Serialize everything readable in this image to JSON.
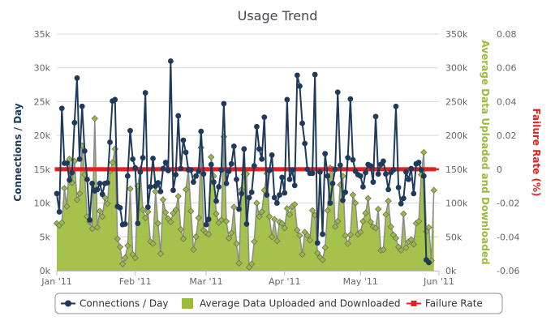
{
  "chart_data": {
    "type": "line",
    "title": "Usage Trend",
    "x_axis": {
      "type": "date",
      "range": [
        "2011-01-01",
        "2011-06-01"
      ],
      "tick_labels": [
        "Jan '11",
        "Feb '11",
        "Mar '11",
        "Apr '11",
        "May '11",
        "Jun '11"
      ],
      "tick_dates": [
        "2011-01-01",
        "2011-02-01",
        "2011-03-01",
        "2011-04-01",
        "2011-05-01",
        "2011-06-01"
      ]
    },
    "y_axes": [
      {
        "id": "connections",
        "label": "Connections / Day",
        "side": "left",
        "min": 0,
        "max": 35000,
        "tick_labels": [
          "0k",
          "5k",
          "10k",
          "15k",
          "20k",
          "25k",
          "30k",
          "35k"
        ],
        "tick_values": [
          0,
          5000,
          10000,
          15000,
          20000,
          25000,
          30000,
          35000
        ]
      },
      {
        "id": "data",
        "label": "Average Data Uploaded and Downloaded",
        "side": "right",
        "min": 0,
        "max": 350000,
        "tick_labels": [
          "0k",
          "50k",
          "100k",
          "150k",
          "200k",
          "250k",
          "300k",
          "350k"
        ],
        "tick_values": [
          0,
          50000,
          100000,
          150000,
          200000,
          250000,
          300000,
          350000
        ]
      },
      {
        "id": "failure",
        "label": "Failure Rate (%)",
        "side": "right",
        "min": -0.06,
        "max": 0.08,
        "tick_labels": [
          "-0.06",
          "-0.04",
          "-0.02",
          "0",
          "0.02",
          "0.04",
          "0.06",
          "0.08"
        ],
        "tick_values": [
          -0.06,
          -0.04,
          -0.02,
          0,
          0.02,
          0.04,
          0.06,
          0.08
        ]
      }
    ],
    "grid": true,
    "legend_position": "bottom",
    "series": [
      {
        "name": "Connections / Day",
        "kind": "line",
        "axis": "connections",
        "color": "#1f3a5a",
        "start_date": "2011-01-01",
        "values": [
          11400,
          8700,
          24000,
          15900,
          15900,
          13400,
          14500,
          21900,
          28500,
          16500,
          24300,
          17700,
          13500,
          7500,
          12900,
          11800,
          12000,
          12900,
          11300,
          12900,
          13000,
          19000,
          25100,
          25300,
          9500,
          9300,
          6800,
          6900,
          14000,
          20700,
          16500,
          15200,
          7000,
          14600,
          16700,
          26300,
          9400,
          12400,
          16600,
          12500,
          13000,
          11700,
          15100,
          16000,
          14800,
          31000,
          11900,
          14200,
          22900,
          15100,
          19300,
          17500,
          14900,
          14900,
          13100,
          14000,
          14700,
          20600,
          14300,
          6800,
          7600,
          15700,
          13100,
          10300,
          12400,
          14900,
          24700,
          12900,
          14700,
          15800,
          18400,
          13500,
          9100,
          11400,
          18000,
          6900,
          10800,
          11600,
          15500,
          21300,
          18000,
          16500,
          22700,
          11200,
          14800,
          17100,
          10800,
          10000,
          11200,
          13800,
          11500,
          25300,
          13500,
          14900,
          12600,
          28900,
          27300,
          21800,
          18800,
          15000,
          14400,
          14400,
          29000,
          4100,
          14600,
          5400,
          17300,
          14000,
          10000,
          12900,
          15000,
          26400,
          15600,
          10400,
          11600,
          16700,
          25400,
          16400,
          14700,
          14200,
          14000,
          12400,
          14500,
          15700,
          15500,
          13100,
          22800,
          14300,
          15700,
          16200,
          14300,
          12000,
          14500,
          14900,
          24300,
          12300,
          9900,
          10700,
          14600,
          13500,
          15100,
          11400,
          15800,
          16000,
          14900,
          14000,
          1600,
          1200
        ]
      },
      {
        "name": "Average Data Uploaded and Downloaded",
        "kind": "area",
        "axis": "data",
        "color": "#9bbb3a",
        "start_date": "2011-01-01",
        "values": [
          70000,
          67000,
          71000,
          122000,
          95000,
          165000,
          130000,
          162000,
          105000,
          114000,
          185000,
          142000,
          80000,
          72000,
          62000,
          225000,
          64000,
          88000,
          80000,
          108000,
          99000,
          147000,
          160000,
          180000,
          47000,
          35000,
          10000,
          19000,
          37000,
          121000,
          24000,
          19000,
          125000,
          150000,
          90000,
          78000,
          87000,
          43000,
          40000,
          117000,
          70000,
          25000,
          105000,
          86000,
          77000,
          72000,
          85000,
          90000,
          110000,
          61000,
          47000,
          120000,
          150000,
          88000,
          31000,
          50000,
          78000,
          182000,
          60000,
          56000,
          54000,
          168000,
          140000,
          84000,
          71000,
          75000,
          198000,
          73000,
          48000,
          56000,
          94000,
          40000,
          11000,
          120000,
          142000,
          143000,
          5000,
          10000,
          43000,
          100000,
          80000,
          87000,
          119000,
          144000,
          80000,
          50000,
          76000,
          44000,
          72000,
          70000,
          63000,
          92000,
          83000,
          95000,
          98000,
          60000,
          52000,
          24000,
          57000,
          52000,
          45000,
          89000,
          82000,
          26000,
          20000,
          16000,
          34000,
          89000,
          152000,
          150000,
          65000,
          73000,
          127000,
          140000,
          52000,
          40000,
          53000,
          112000,
          100000,
          54000,
          57000,
          73000,
          85000,
          107000,
          72000,
          65000,
          63000,
          91000,
          30000,
          31000,
          83000,
          103000,
          65000,
          53000,
          48000,
          35000,
          30000,
          84000,
          34000,
          43000,
          46000,
          39000,
          70000,
          73000,
          142000,
          175000,
          58000,
          64000,
          15000,
          119000
        ]
      },
      {
        "name": "Failure Rate",
        "kind": "line",
        "axis": "failure",
        "color": "#e62020",
        "constant_value": 0
      }
    ]
  }
}
